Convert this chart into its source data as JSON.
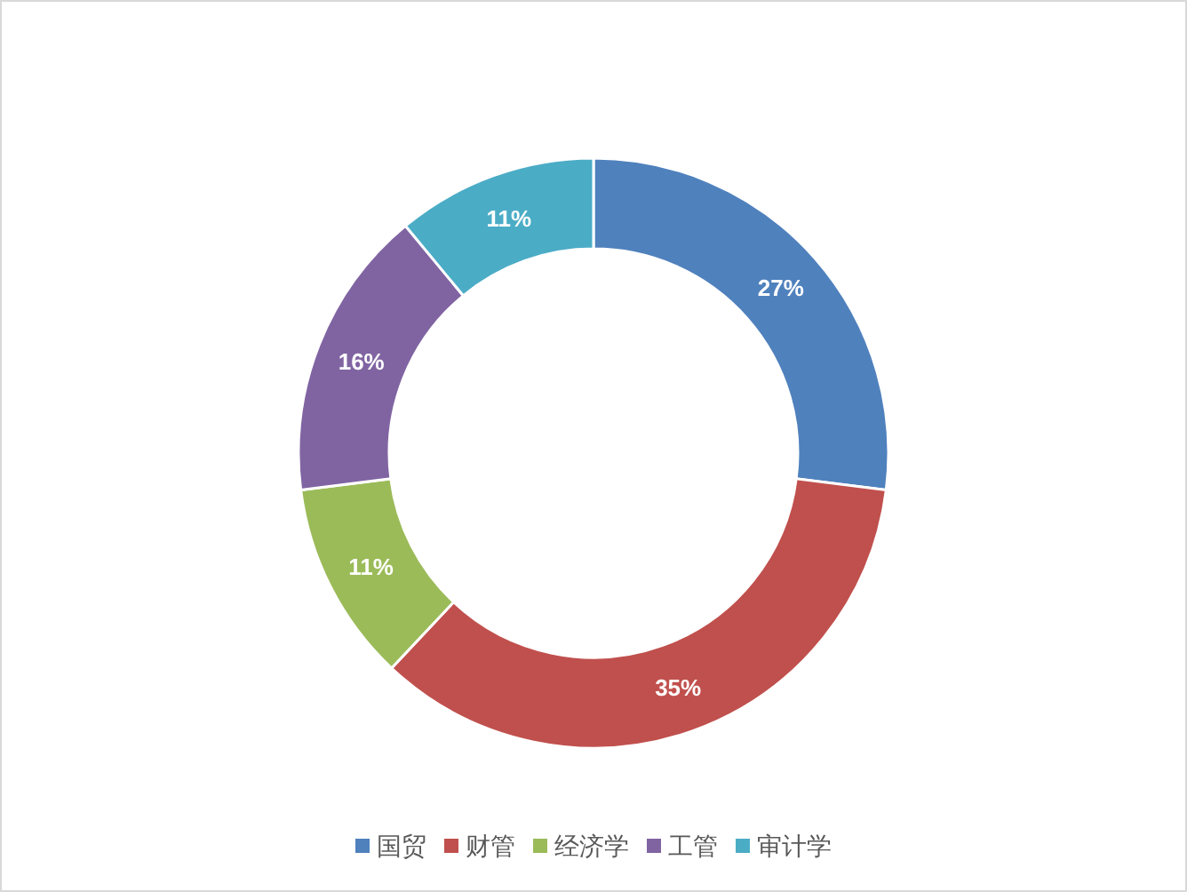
{
  "chart_data": {
    "type": "donut",
    "categories": [
      "国贸",
      "财管",
      "经济学",
      "工管",
      "审计学"
    ],
    "values": [
      27,
      35,
      11,
      16,
      11
    ],
    "value_labels": [
      "27%",
      "35%",
      "11%",
      "16%",
      "11%"
    ],
    "colors": [
      "#4f81bd",
      "#c0504d",
      "#9bbb59",
      "#8064a2",
      "#4bacc6"
    ],
    "legend": "bottom"
  }
}
